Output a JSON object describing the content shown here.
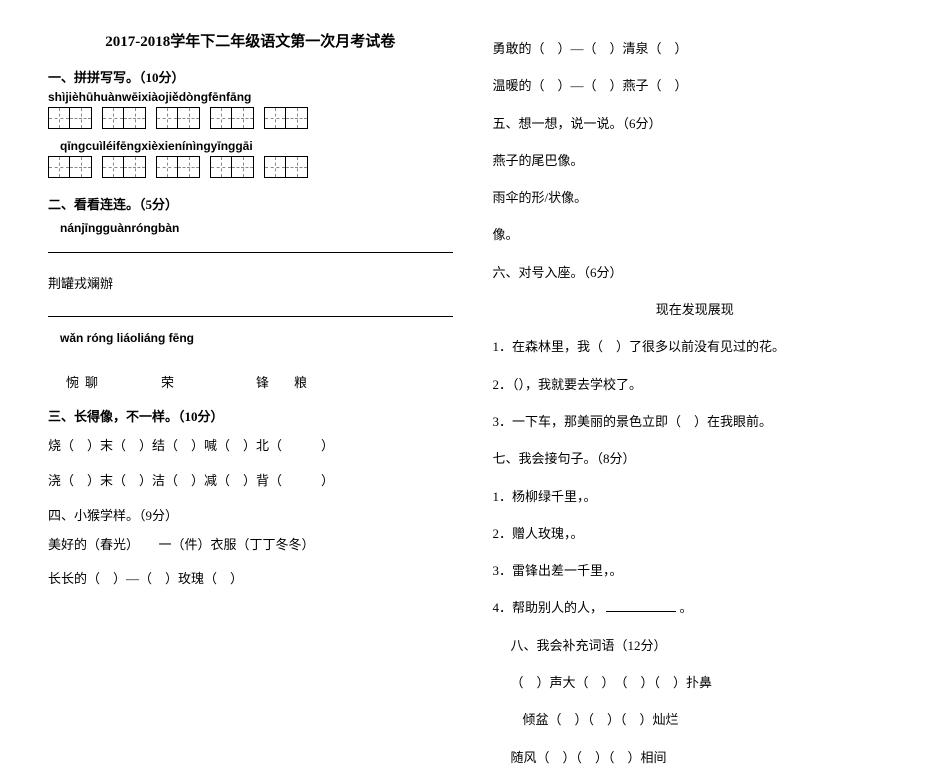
{
  "title": "2017-2018学年下二年级语文第一次月考试卷",
  "s1": {
    "heading": "一、拼拼写写。（10分）",
    "pinyin_row1": "shìjièhūhuànwēixiàojiědòngfēnfāng",
    "pinyin_row2": "qīngcuìléifēngxièxienínìngyīnggāi",
    "row1_groups": [
      2,
      2,
      2,
      2,
      2
    ],
    "row2_groups": [
      2,
      2,
      2,
      2,
      2
    ]
  },
  "s2": {
    "heading": "二、看看连连。（5分）",
    "pinyin_a": "nánjīngguànróngbàn",
    "hanzi_a": "荆罐戎斓辦",
    "pinyin_b": "wǎn  róng  liáoliáng  fēng",
    "hanzi_b": "惋聊　　　荣　　　　锋　粮"
  },
  "s3": {
    "heading": "三、长得像，不一样。（10分）",
    "l1": "烧（　）末（　）结（　）喊（　）北（　　　）",
    "l2": "浇（　）末（　）洁（　）减（　）背（　　　）"
  },
  "s4": {
    "heading": "四、小猴学样。（9分）",
    "l1": "美好的（春光）　　一（件）衣服（丁丁冬冬）",
    "l2": "长长的（　）—（　）玫瑰（　）"
  },
  "right": {
    "r1": "勇敢的（　）—（　）清泉（　）",
    "r2": "温暖的（　）—（　）燕子（　）",
    "s5_heading": "五、想一想，说一说。（6分）",
    "s5_l1": "燕子的尾巴像。",
    "s5_l2": "雨伞的形/状像。",
    "s5_l3": "像。",
    "s6_heading": "六、对号入座。（6分）",
    "s6_bank": "现在发现展现",
    "s6_1": "1．在森林里，我（　）了很多以前没有见过的花。",
    "s6_2": "2．（），我就要去学校了。",
    "s6_3": "3．一下车，那美丽的景色立即（　）在我眼前。",
    "s7_heading": "七、我会接句子。（8分）",
    "s7_1": "1．杨柳绿千里，。",
    "s7_2": "2．赠人玫瑰，。",
    "s7_3": "3．雷锋出差一千里，。",
    "s7_4a": "4．帮助别人的人，",
    "s7_4b": "。",
    "s8_heading": "八、我会补充词语（12分）",
    "s8_l1": "（　）声大（　）　（　）（　）扑鼻",
    "s8_l2": "倾盆（　）（　）（　）灿烂",
    "s8_l3": "随风（　）（　）（　）相间"
  }
}
